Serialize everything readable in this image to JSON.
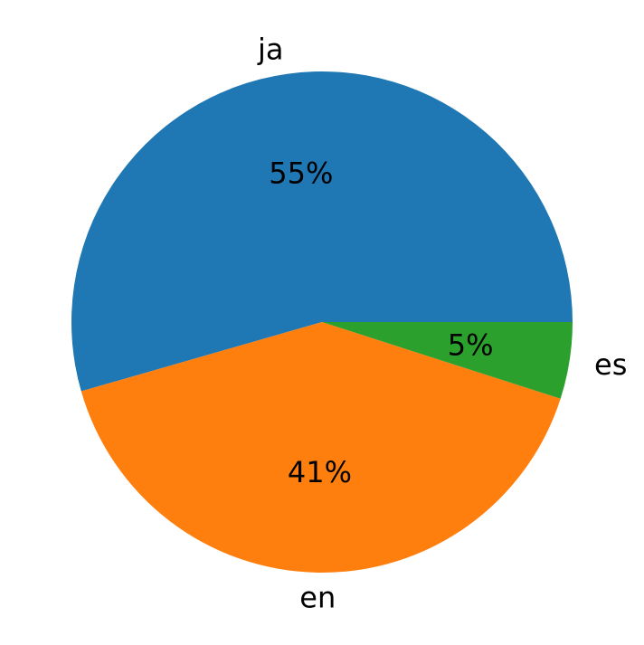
{
  "chart_data": {
    "type": "pie",
    "title": "",
    "start_angle_deg": 0,
    "direction": "counterclockwise",
    "slices": [
      {
        "label": "ja",
        "value": 55,
        "pct_label": "55%",
        "color": "#1f77b4"
      },
      {
        "label": "en",
        "value": 41,
        "pct_label": "41%",
        "color": "#ff7f0e"
      },
      {
        "label": "es",
        "value": 5,
        "pct_label": "5%",
        "color": "#2ca02c"
      }
    ]
  }
}
